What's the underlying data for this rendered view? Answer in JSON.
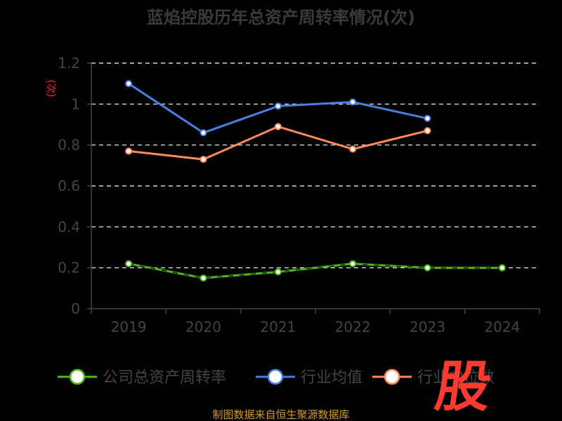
{
  "chart_data": {
    "type": "line",
    "title": "蓝焰控股历年总资产周转率情况(次)",
    "unit_label": "(次)",
    "categories": [
      "2019",
      "2020",
      "2021",
      "2022",
      "2023",
      "2024"
    ],
    "y_ticks": [
      "0",
      "0.2",
      "0.4",
      "0.6",
      "0.8",
      "1",
      "1.2"
    ],
    "ylim": [
      0,
      1.2
    ],
    "grid": true,
    "legend_placement": "bottom",
    "series": [
      {
        "name": "公司总资产周转率",
        "color": "#4cbb17",
        "dashed": true,
        "values": [
          0.22,
          0.15,
          0.18,
          0.22,
          0.2,
          0.2
        ]
      },
      {
        "name": "行业均值",
        "color": "#4a7fe0",
        "dashed": false,
        "values": [
          1.1,
          0.86,
          0.99,
          1.01,
          0.93,
          null
        ]
      },
      {
        "name": "行业中位数",
        "color": "#ff8c5a",
        "dashed": false,
        "values": [
          0.77,
          0.73,
          0.89,
          0.78,
          0.87,
          null
        ]
      }
    ]
  },
  "source_text": "制图数据来自恒生聚源数据库",
  "watermark": "股"
}
